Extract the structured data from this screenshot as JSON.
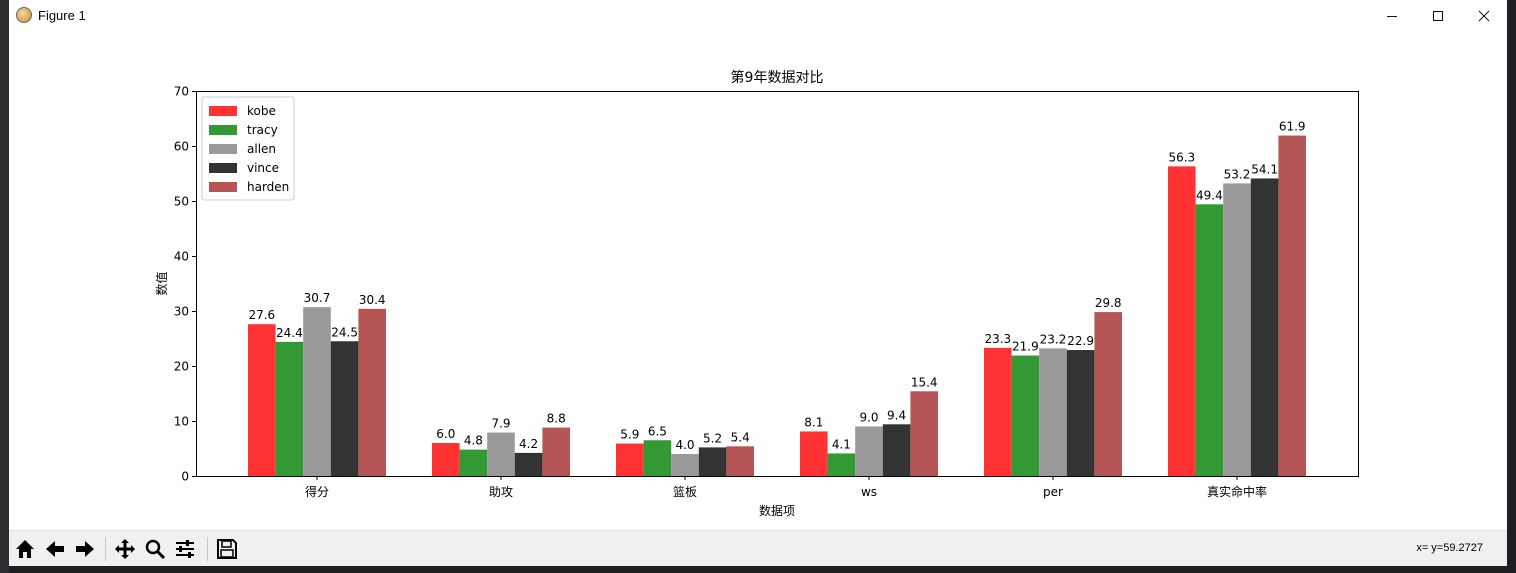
{
  "window": {
    "title": "Figure 1"
  },
  "status": {
    "coords": "x= y=59.2727"
  },
  "toolbar": {
    "tools": [
      "home-icon",
      "back-icon",
      "forward-icon",
      "pan-icon",
      "zoom-icon",
      "configure-icon",
      "save-icon"
    ]
  },
  "colors": {
    "kobe": "#ff3333",
    "tracy": "#339933",
    "allen": "#999999",
    "vince": "#333333",
    "harden": "#b55555"
  },
  "chart_data": {
    "type": "bar",
    "title": "第9年数据对比",
    "xlabel": "数据项",
    "ylabel": "数值",
    "ylim": [
      0,
      70
    ],
    "yticks": [
      0,
      10,
      20,
      30,
      40,
      50,
      60,
      70
    ],
    "categories": [
      "得分",
      "助攻",
      "篮板",
      "ws",
      "per",
      "真实命中率"
    ],
    "legend_position": "upper-left",
    "series": [
      {
        "name": "kobe",
        "values": [
          27.6,
          6.0,
          5.9,
          8.1,
          23.3,
          56.3
        ]
      },
      {
        "name": "tracy",
        "values": [
          24.4,
          4.8,
          6.5,
          4.1,
          21.9,
          49.4
        ]
      },
      {
        "name": "allen",
        "values": [
          30.7,
          7.9,
          4.0,
          9.0,
          23.2,
          53.2
        ]
      },
      {
        "name": "vince",
        "values": [
          24.5,
          4.2,
          5.2,
          9.4,
          22.9,
          54.1
        ]
      },
      {
        "name": "harden",
        "values": [
          30.4,
          8.8,
          5.4,
          15.4,
          29.8,
          61.9
        ]
      }
    ]
  }
}
